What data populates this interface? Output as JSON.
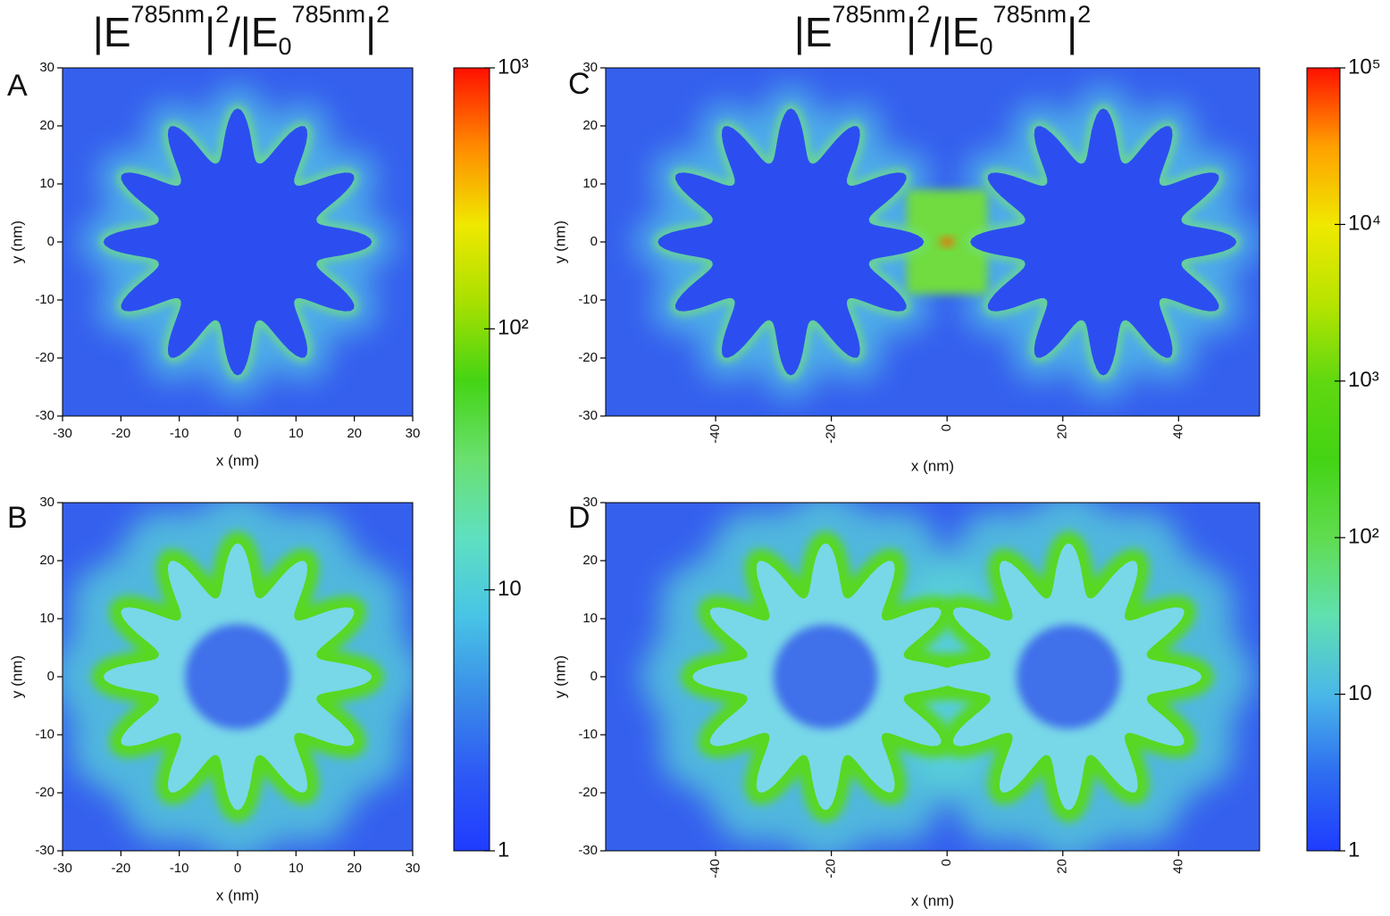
{
  "chart_data": [
    {
      "type": "heatmap",
      "panel_label": "A",
      "xlabel": "x (nm)",
      "ylabel": "y (nm)",
      "xlim": [
        -30,
        30
      ],
      "ylim": [
        -30,
        30
      ],
      "xticks": [
        -30,
        -20,
        -10,
        0,
        10,
        20,
        30
      ],
      "yticks": [
        -30,
        -20,
        -10,
        0,
        10,
        20,
        30
      ]
    },
    {
      "type": "heatmap",
      "panel_label": "B",
      "xlabel": "x (nm)",
      "ylabel": "y (nm)",
      "xlim": [
        -30,
        30
      ],
      "ylim": [
        -30,
        30
      ],
      "xticks": [
        -30,
        -20,
        -10,
        0,
        10,
        20,
        30
      ],
      "yticks": [
        -30,
        -20,
        -10,
        0,
        10,
        20,
        30
      ]
    },
    {
      "type": "heatmap",
      "panel_label": "C",
      "xlabel": "x (nm)",
      "ylabel": "y (nm)",
      "xlim": [
        -59,
        54
      ],
      "ylim": [
        -30,
        30
      ],
      "xticks": [
        -40,
        -20,
        0,
        20,
        40
      ],
      "yticks": [
        -30,
        -20,
        -10,
        0,
        10,
        20,
        30
      ],
      "xtick_rotation": -90
    },
    {
      "type": "heatmap",
      "panel_label": "D",
      "xlabel": "x (nm)",
      "ylabel": "y (nm)",
      "xlim": [
        -59,
        54
      ],
      "ylim": [
        -30,
        30
      ],
      "xticks": [
        -40,
        -20,
        0,
        20,
        40
      ],
      "yticks": [
        -30,
        -20,
        -10,
        0,
        10,
        20,
        30
      ],
      "xtick_rotation": -90
    },
    {
      "type": "colorbar",
      "scale": "log",
      "title": [
        {
          "text": "|E",
          "style": "normal"
        },
        {
          "text": "785nm",
          "style": "sup"
        },
        {
          "text": "|",
          "style": "normal"
        },
        {
          "text": "2",
          "style": "sup"
        },
        {
          "text": "/|E",
          "style": "normal"
        },
        {
          "text": "0",
          "style": "sub"
        },
        {
          "text": "785nm",
          "style": "sup"
        },
        {
          "text": "|",
          "style": "normal"
        },
        {
          "text": "2",
          "style": "sup"
        }
      ],
      "lim": [
        1,
        1000
      ],
      "ticks": [
        1,
        10,
        {
          "value": 100,
          "label": "10²"
        },
        {
          "value": 1000,
          "label": "10³"
        }
      ],
      "colors": [
        "#1f3cff",
        "#2e5af5",
        "#3a8ee8",
        "#48c4e6",
        "#5ee0c0",
        "#6ae070",
        "#44d414",
        "#a8e000",
        "#f0e800",
        "#ff8a00",
        "#ff1000"
      ]
    },
    {
      "type": "colorbar",
      "scale": "log",
      "title": [
        {
          "text": "|E",
          "style": "normal"
        },
        {
          "text": "785nm",
          "style": "sup"
        },
        {
          "text": "|",
          "style": "normal"
        },
        {
          "text": "2",
          "style": "sup"
        },
        {
          "text": "/|E",
          "style": "normal"
        },
        {
          "text": "0",
          "style": "sub"
        },
        {
          "text": "785nm",
          "style": "sup"
        },
        {
          "text": "|",
          "style": "normal"
        },
        {
          "text": "2",
          "style": "sup"
        }
      ],
      "lim": [
        1,
        100000
      ],
      "ticks": [
        1,
        10,
        {
          "value": 100,
          "label": "10²"
        },
        {
          "value": 1000,
          "label": "10³"
        },
        {
          "value": 10000,
          "label": "10⁴"
        },
        {
          "value": 100000,
          "label": "10⁵"
        }
      ],
      "colors": [
        "#1f3cff",
        "#2e6ef0",
        "#4ab8e8",
        "#60e0b0",
        "#60dc50",
        "#44d414",
        "#60d810",
        "#b8e400",
        "#f0e800",
        "#ffa000",
        "#ff1000"
      ]
    }
  ]
}
